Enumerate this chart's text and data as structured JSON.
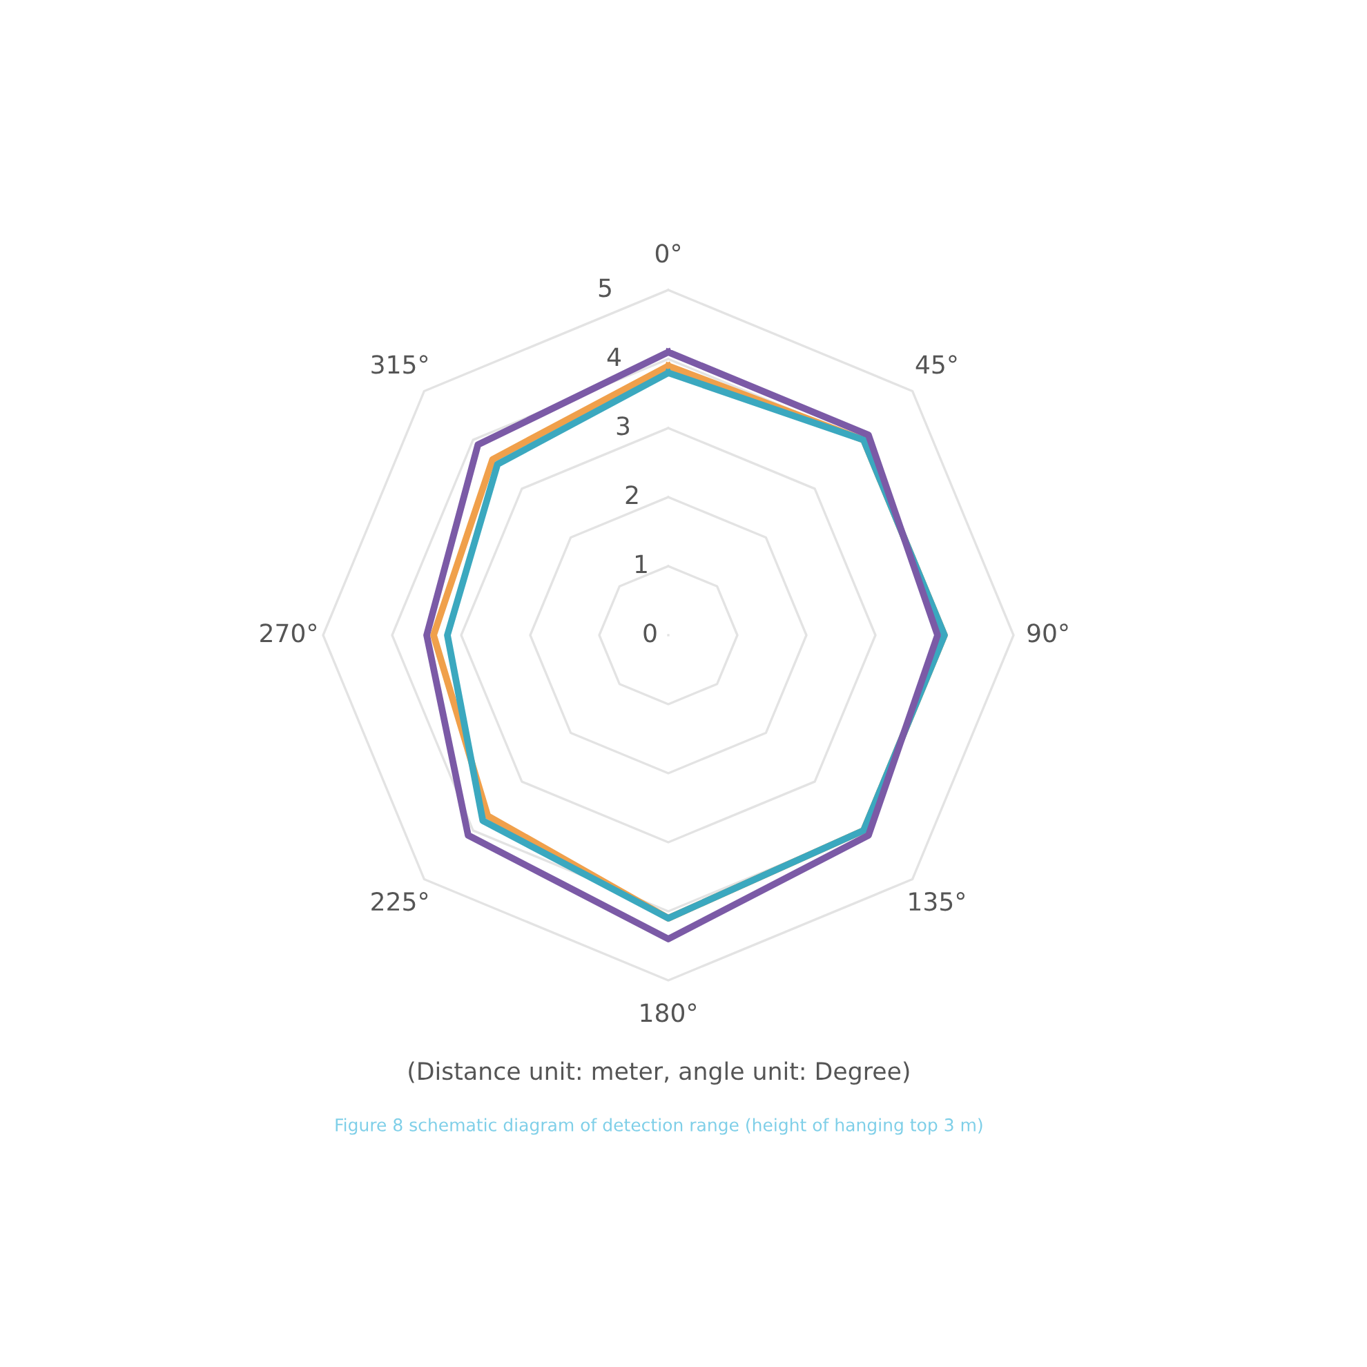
{
  "chart_data": {
    "type": "radar",
    "categories": [
      "0°",
      "45°",
      "90°",
      "135°",
      "180°",
      "225°",
      "270°",
      "315°"
    ],
    "ylim": [
      0,
      5
    ],
    "yticks": [
      0,
      1,
      2,
      3,
      4,
      5
    ],
    "grid": true,
    "line_style": "solid",
    "marker": "none",
    "series": [
      {
        "color": "#f0a04b",
        "values": [
          3.9,
          4.0,
          4.0,
          4.0,
          4.1,
          3.7,
          3.4,
          3.6
        ]
      },
      {
        "color": "#3ba8bf",
        "values": [
          3.8,
          4.0,
          4.0,
          4.0,
          4.1,
          3.8,
          3.2,
          3.5
        ]
      },
      {
        "color": "#7b5aa6",
        "values": [
          4.1,
          4.1,
          3.9,
          4.1,
          4.4,
          4.1,
          3.5,
          3.9
        ]
      }
    ],
    "annotations": [
      "(Distance unit: meter, angle unit: Degree)",
      "Figure 8 schematic diagram of detection range (height of hanging top 3 m)"
    ]
  }
}
